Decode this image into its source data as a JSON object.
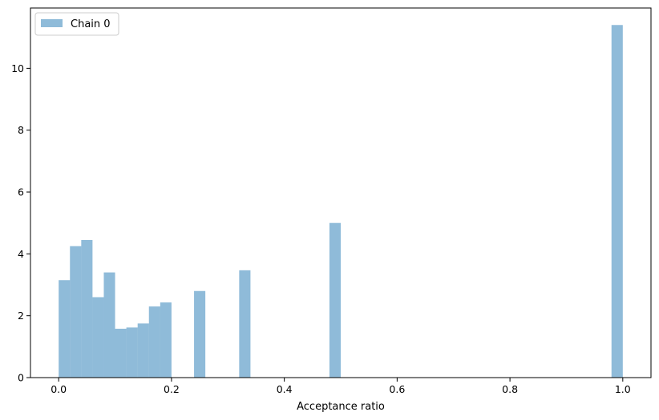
{
  "chart_data": {
    "type": "bar",
    "subtype": "histogram",
    "title": "",
    "xlabel": "Acceptance ratio",
    "ylabel": "",
    "xlim": [
      -0.05,
      1.05
    ],
    "ylim": [
      0,
      11.95
    ],
    "x_ticks": [
      "0.0",
      "0.2",
      "0.4",
      "0.6",
      "0.8",
      "1.0"
    ],
    "y_ticks": [
      "0",
      "2",
      "4",
      "6",
      "8",
      "10"
    ],
    "grid": false,
    "legend_position": "top-left",
    "bin_width": 0.02,
    "series": [
      {
        "name": "Chain 0",
        "color": "#1f77b4",
        "alpha": 0.5,
        "bins": [
          {
            "x0": 0.0,
            "x1": 0.02,
            "value": 3.15
          },
          {
            "x0": 0.02,
            "x1": 0.04,
            "value": 4.25
          },
          {
            "x0": 0.04,
            "x1": 0.06,
            "value": 4.45
          },
          {
            "x0": 0.06,
            "x1": 0.08,
            "value": 2.6
          },
          {
            "x0": 0.08,
            "x1": 0.1,
            "value": 3.4
          },
          {
            "x0": 0.1,
            "x1": 0.12,
            "value": 1.58
          },
          {
            "x0": 0.12,
            "x1": 0.14,
            "value": 1.62
          },
          {
            "x0": 0.14,
            "x1": 0.16,
            "value": 1.75
          },
          {
            "x0": 0.16,
            "x1": 0.18,
            "value": 2.3
          },
          {
            "x0": 0.18,
            "x1": 0.2,
            "value": 2.43
          },
          {
            "x0": 0.24,
            "x1": 0.26,
            "value": 2.8
          },
          {
            "x0": 0.32,
            "x1": 0.34,
            "value": 3.47
          },
          {
            "x0": 0.48,
            "x1": 0.5,
            "value": 5.0
          },
          {
            "x0": 0.98,
            "x1": 1.0,
            "value": 11.4
          }
        ]
      }
    ]
  }
}
